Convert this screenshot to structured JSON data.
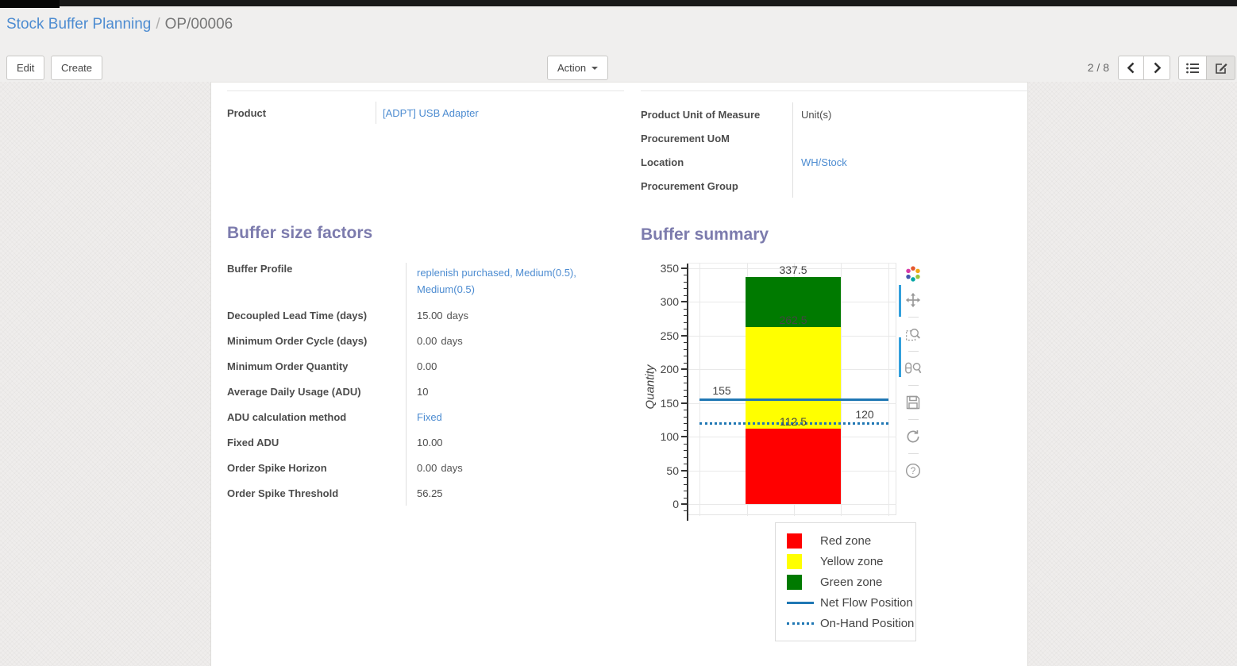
{
  "breadcrumb": {
    "parent": "Stock Buffer Planning",
    "separator": "/",
    "current": "OP/00006"
  },
  "control_panel": {
    "edit_label": "Edit",
    "create_label": "Create",
    "action_label": "Action",
    "pager_value": "2 / 8"
  },
  "form": {
    "product": {
      "label": "Product",
      "value": "[ADPT] USB Adapter"
    },
    "right_fields": [
      {
        "label": "Product Unit of Measure",
        "value": "Unit(s)"
      },
      {
        "label": "Procurement UoM",
        "value": ""
      },
      {
        "label": "Location",
        "value": "WH/Stock"
      },
      {
        "label": "Procurement Group",
        "value": ""
      }
    ],
    "factors_title": "Buffer size factors",
    "summary_title": "Buffer summary",
    "factors": [
      {
        "label": "Buffer Profile",
        "value": "replenish purchased, Medium(0.5), Medium(0.5)"
      },
      {
        "label": "Decoupled Lead Time (days)",
        "value": "15.00",
        "suffix": "days"
      },
      {
        "label": "Minimum Order Cycle (days)",
        "value": "0.00",
        "suffix": "days"
      },
      {
        "label": "Minimum Order Quantity",
        "value": "0.00"
      },
      {
        "label": "Average Daily Usage (ADU)",
        "value": "10"
      },
      {
        "label": "ADU calculation method",
        "value": "Fixed"
      },
      {
        "label": "Fixed ADU",
        "value": "10.00"
      },
      {
        "label": "Order Spike Horizon",
        "value": "0.00",
        "suffix": "days"
      },
      {
        "label": "Order Spike Threshold",
        "value": "56.25"
      }
    ]
  },
  "chart_data": {
    "type": "bar",
    "title": "Buffer summary",
    "ylabel": "Quantity",
    "ylim": [
      0,
      350
    ],
    "yticks": [
      0,
      50,
      100,
      150,
      200,
      250,
      300,
      350
    ],
    "grid": true,
    "zones": [
      {
        "name": "Red zone",
        "color": "#ff0000",
        "from": 0,
        "to": 112.5,
        "label": "112.5"
      },
      {
        "name": "Yellow zone",
        "color": "#ffff00",
        "from": 112.5,
        "to": 262.5,
        "label": "262.5"
      },
      {
        "name": "Green zone",
        "color": "#007a00",
        "from": 262.5,
        "to": 337.5,
        "label": "337.5"
      }
    ],
    "lines": [
      {
        "name": "Net Flow Position",
        "value": 155,
        "label": "155",
        "style": "solid",
        "color": "#1f77b4"
      },
      {
        "name": "On-Hand Position",
        "value": 120,
        "label": "120",
        "style": "dotted",
        "color": "#1f77b4"
      }
    ],
    "legend_position": "below-right",
    "legend": [
      {
        "label": "Red zone",
        "swatch": "box",
        "color": "#ff0000"
      },
      {
        "label": "Yellow zone",
        "swatch": "box",
        "color": "#ffff00"
      },
      {
        "label": "Green zone",
        "swatch": "box",
        "color": "#007a00"
      },
      {
        "label": "Net Flow Position",
        "swatch": "line",
        "color": "#1f77b4"
      },
      {
        "label": "On-Hand Position",
        "swatch": "dots",
        "color": "#1f77b4"
      }
    ]
  }
}
